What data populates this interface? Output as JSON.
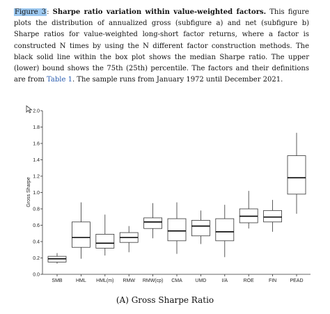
{
  "caption": {
    "figure_label": "Figure 3",
    "title": "Sharpe ratio variation within value-weighted factors.",
    "text_before_link": "This figure plots the distribution of annualized gross (subfigure a) and net (subfigure b) Sharpe ratios for value-weighted long-short factor returns, where a factor is constructed N times by using the N different factor construction methods. The black solid line within the box plot shows the median Sharpe ratio. The upper (lower) bound shows the 75th (25th) percentile. The factors and their definitions are from",
    "link_text": "Table 1",
    "text_after_link": ". The sample runs from January 1972 until December 2021."
  },
  "icons": {
    "cursor": "mouse-pointer-icon"
  },
  "chart_data": {
    "type": "box",
    "ylabel": "Gross Sharpe",
    "xlabel": "",
    "ylim": [
      0.0,
      2.0
    ],
    "yticks": [
      "0.0",
      "0.2",
      "0.4",
      "0.6",
      "0.8",
      "1.0",
      "1.2",
      "1.4",
      "1.6",
      "1.8",
      "2.0"
    ],
    "grid": false,
    "categories": [
      "SMB",
      "HML",
      "HML(m)",
      "RMW",
      "RMW(cp)",
      "CMA",
      "UMD",
      "I/A",
      "ROE",
      "FIN",
      "PEAD"
    ],
    "boxes": [
      {
        "min": 0.13,
        "q1": 0.15,
        "median": 0.19,
        "q3": 0.22,
        "max": 0.26
      },
      {
        "min": 0.19,
        "q1": 0.33,
        "median": 0.45,
        "q3": 0.64,
        "max": 0.88
      },
      {
        "min": 0.23,
        "q1": 0.32,
        "median": 0.38,
        "q3": 0.49,
        "max": 0.73
      },
      {
        "min": 0.27,
        "q1": 0.39,
        "median": 0.45,
        "q3": 0.51,
        "max": 0.59
      },
      {
        "min": 0.44,
        "q1": 0.56,
        "median": 0.64,
        "q3": 0.69,
        "max": 0.87
      },
      {
        "min": 0.25,
        "q1": 0.41,
        "median": 0.53,
        "q3": 0.68,
        "max": 0.88
      },
      {
        "min": 0.37,
        "q1": 0.47,
        "median": 0.59,
        "q3": 0.66,
        "max": 0.78
      },
      {
        "min": 0.21,
        "q1": 0.41,
        "median": 0.52,
        "q3": 0.68,
        "max": 0.85
      },
      {
        "min": 0.56,
        "q1": 0.63,
        "median": 0.71,
        "q3": 0.8,
        "max": 1.02
      },
      {
        "min": 0.52,
        "q1": 0.64,
        "median": 0.7,
        "q3": 0.78,
        "max": 0.91
      },
      {
        "min": 0.74,
        "q1": 0.98,
        "median": 1.18,
        "q3": 1.45,
        "max": 1.73
      }
    ]
  },
  "subcaption": "(A) Gross Sharpe Ratio"
}
